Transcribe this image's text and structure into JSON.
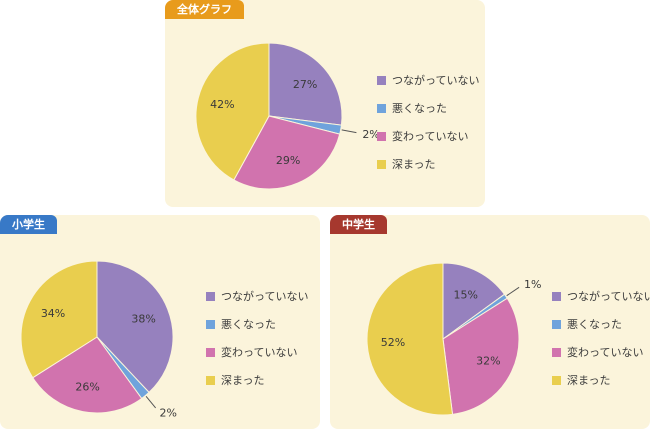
{
  "page": {
    "background": "#FFFFFF",
    "panel_background": "#FBF4DB"
  },
  "legend_labels": [
    "つながっていない",
    "悪くなった",
    "変わっていない",
    "深まった"
  ],
  "slice_palette": [
    "#9681BE",
    "#6FA3DC",
    "#D173AE",
    "#E9CE4E"
  ],
  "chart_data": [
    {
      "type": "pie",
      "title": "全体グラフ",
      "header_color": "#E89B1C",
      "labels": [
        "つながっていない",
        "悪くなった",
        "変わっていない",
        "深まった"
      ],
      "values": [
        27,
        2,
        29,
        42
      ],
      "value_labels": [
        "27%",
        "2%",
        "29%",
        "42%"
      ],
      "colors": [
        "#9681BE",
        "#6FA3DC",
        "#D173AE",
        "#E9CE4E"
      ],
      "legend_position": "right",
      "start_angle": "top",
      "direction": "clockwise"
    },
    {
      "type": "pie",
      "title": "小学生",
      "header_color": "#3879C7",
      "labels": [
        "つながっていない",
        "悪くなった",
        "変わっていない",
        "深まった"
      ],
      "values": [
        38,
        2,
        26,
        34
      ],
      "value_labels": [
        "38%",
        "2%",
        "26%",
        "34%"
      ],
      "colors": [
        "#9681BE",
        "#6FA3DC",
        "#D173AE",
        "#E9CE4E"
      ],
      "legend_position": "right",
      "start_angle": "top",
      "direction": "clockwise"
    },
    {
      "type": "pie",
      "title": "中学生",
      "header_color": "#A6382E",
      "labels": [
        "つながっていない",
        "悪くなった",
        "変わっていない",
        "深まった"
      ],
      "values": [
        15,
        1,
        32,
        52
      ],
      "value_labels": [
        "15%",
        "1%",
        "32%",
        "52%"
      ],
      "colors": [
        "#9681BE",
        "#6FA3DC",
        "#D173AE",
        "#E9CE4E"
      ],
      "legend_position": "right",
      "start_angle": "top",
      "direction": "clockwise"
    }
  ]
}
